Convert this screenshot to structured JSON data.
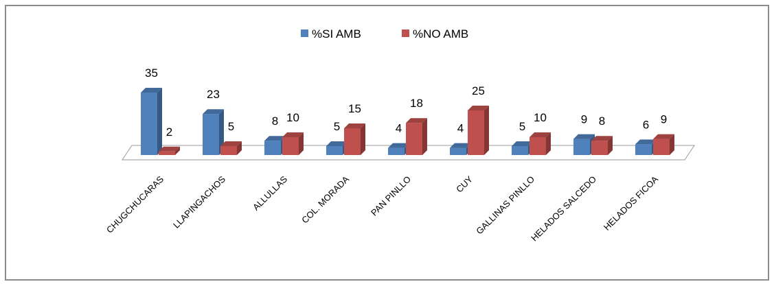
{
  "chart_data": {
    "type": "bar",
    "style": "3d-clustered-column",
    "categories": [
      "CHUGCHUCARAS",
      "LLAPINGACHOS",
      "ALLULLAS",
      "COL. MORADA",
      "PAN PINLLO",
      "CUY",
      "GALLINAS PINLLO",
      "HELADOS SALCEDO",
      "HELADOS FICOA"
    ],
    "series": [
      {
        "name": "%SI AMB",
        "values": [
          35,
          23,
          8,
          5,
          4,
          4,
          5,
          9,
          6
        ],
        "color": "#4f81bd"
      },
      {
        "name": "%NO AMB",
        "values": [
          2,
          5,
          10,
          15,
          18,
          25,
          10,
          8,
          9
        ],
        "color": "#c0504d"
      }
    ],
    "title": "",
    "xlabel": "",
    "ylabel": "",
    "ylim": [
      0,
      35
    ],
    "grid": false,
    "legend_position": "top-center",
    "data_labels": true
  }
}
